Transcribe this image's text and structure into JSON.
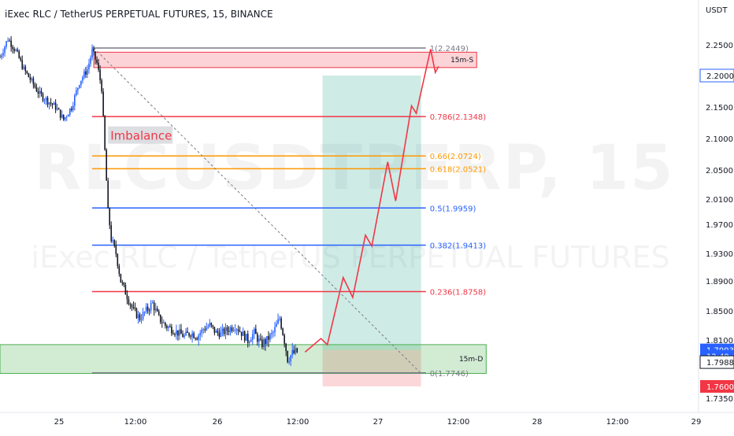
{
  "header": {
    "symbol_title": "iExec RLC / TetherUS PERPETUAL FUTURES, 15, BINANCE",
    "axis_unit": "USDT"
  },
  "watermark": {
    "ticker": "RLCUSDTPERP, 15",
    "description": "iExec RLC / TetherUS PERPETUAL FUTURES"
  },
  "colors": {
    "up_candle": "#2962ff",
    "down_candle": "#131722",
    "fib_top": "#787b86",
    "fib_0786": "#f23645",
    "fib_066": "#ff9800",
    "fib_05": "#2962ff",
    "target_zone": "#089981",
    "stop_zone": "#f23645",
    "supply_zone": "#f23645",
    "demand_zone": "#4caf50",
    "path": "#f23645",
    "current_price_tag": "#2962ff",
    "stop_price_tag": "#f23645"
  },
  "chart_data": {
    "type": "candlestick",
    "symbol": "RLCUSDTPERP",
    "interval": "15",
    "exchange": "BINANCE",
    "x_ticks": [
      "25",
      "12:00",
      "26",
      "12:00",
      "27",
      "12:00",
      "28",
      "12:00",
      "29"
    ],
    "y_ticks": [
      2.25,
      2.15,
      2.1,
      2.05,
      2.01,
      1.97,
      1.93,
      1.89,
      1.85,
      1.81,
      1.735
    ],
    "y_tick_labels": [
      "2.2500",
      "2.1500",
      "2.1000",
      "2.0500",
      "2.0100",
      "1.9700",
      "1.9300",
      "1.8900",
      "1.8500",
      "1.8100",
      "1.7350"
    ],
    "ylim": [
      1.725,
      2.29
    ],
    "price_tags": [
      {
        "label": "2.2000",
        "price": 2.2,
        "style": "blue-outline"
      },
      {
        "label": "1.7993",
        "price": 1.7993,
        "style": "blue"
      },
      {
        "label": "12:49",
        "price": 1.7925,
        "style": "blue"
      },
      {
        "label": "1.7988",
        "price": 1.7862,
        "style": "outline"
      },
      {
        "label": "1.7600",
        "price": 1.76,
        "style": "red"
      }
    ],
    "candle_close_path": [
      [
        0.0,
        2.23
      ],
      [
        2.5,
        2.26
      ],
      [
        5.0,
        2.24
      ],
      [
        7.5,
        2.21
      ],
      [
        10.0,
        2.19
      ],
      [
        12.5,
        2.17
      ],
      [
        15.0,
        2.16
      ],
      [
        17.5,
        2.15
      ],
      [
        20.0,
        2.13
      ],
      [
        22.5,
        2.15
      ],
      [
        25.0,
        2.19
      ],
      [
        27.5,
        2.21
      ],
      [
        29.0,
        2.24
      ],
      [
        30.5,
        2.22
      ],
      [
        32.0,
        2.18
      ],
      [
        33.0,
        2.08
      ],
      [
        34.0,
        1.99
      ],
      [
        35.0,
        1.95
      ],
      [
        36.5,
        1.93
      ],
      [
        38.0,
        1.89
      ],
      [
        40.0,
        1.87
      ],
      [
        42.0,
        1.85
      ],
      [
        44.0,
        1.84
      ],
      [
        46.0,
        1.85
      ],
      [
        48.0,
        1.86
      ],
      [
        50.0,
        1.84
      ],
      [
        52.0,
        1.83
      ],
      [
        54.0,
        1.825
      ],
      [
        56.0,
        1.82
      ],
      [
        58.0,
        1.815
      ],
      [
        60.0,
        1.82
      ],
      [
        62.0,
        1.815
      ],
      [
        64.0,
        1.825
      ],
      [
        66.0,
        1.83
      ],
      [
        68.0,
        1.82
      ],
      [
        70.0,
        1.82
      ],
      [
        72.0,
        1.825
      ],
      [
        74.0,
        1.83
      ],
      [
        76.0,
        1.82
      ],
      [
        78.0,
        1.81
      ],
      [
        80.0,
        1.82
      ],
      [
        82.0,
        1.805
      ],
      [
        84.0,
        1.81
      ],
      [
        86.0,
        1.82
      ],
      [
        88.0,
        1.84
      ],
      [
        89.5,
        1.81
      ],
      [
        90.5,
        1.79
      ],
      [
        92.0,
        1.795
      ],
      [
        93.5,
        1.797
      ]
    ],
    "fibonacci": {
      "start_x": 29.0,
      "end_x": 134.0,
      "levels": [
        {
          "label": "1(2.2449)",
          "price": 2.2449,
          "color_key": "fib_top"
        },
        {
          "label": "0.786(2.1348)",
          "price": 2.1348,
          "color_key": "fib_0786"
        },
        {
          "label": "0.66(2.0724)",
          "price": 2.0724,
          "color_key": "fib_066"
        },
        {
          "label": "0.618(2.0521)",
          "price": 2.0521,
          "color_key": "fib_066"
        },
        {
          "label": "0.5(1.9959)",
          "price": 1.9959,
          "color_key": "fib_05"
        },
        {
          "label": "0.382(1.9413)",
          "price": 1.9413,
          "color_key": "fib_05"
        },
        {
          "label": "0.236(1.8758)",
          "price": 1.8758,
          "color_key": "fib_0786"
        },
        {
          "label": "0(1.7746)",
          "price": 1.7746,
          "color_key": "fib_top"
        }
      ]
    },
    "zones": [
      {
        "label": "15m-S",
        "x0": 29.5,
        "x1": 150.0,
        "top": 2.238,
        "bottom": 2.213,
        "color_key": "supply_zone"
      },
      {
        "label": "15m-D",
        "x0": 0.0,
        "x1": 153.0,
        "top": 1.805,
        "bottom": 1.774,
        "color_key": "demand_zone"
      }
    ],
    "position": {
      "entry": 1.7993,
      "target": 2.2,
      "stop": 1.76,
      "x0": 101.5,
      "x1": 132.5
    },
    "projection_path": [
      [
        96.0,
        1.797
      ],
      [
        101.0,
        1.812
      ],
      [
        103.0,
        1.805
      ],
      [
        108.0,
        1.895
      ],
      [
        111.0,
        1.868
      ],
      [
        115.0,
        1.955
      ],
      [
        117.0,
        1.94
      ],
      [
        122.0,
        2.063
      ],
      [
        124.5,
        2.007
      ],
      [
        129.5,
        2.152
      ],
      [
        131.0,
        2.14
      ],
      [
        135.5,
        2.243
      ],
      [
        137.0,
        2.205
      ],
      [
        138.0,
        2.215
      ]
    ],
    "trend_line": {
      "from": [
        29.5,
        2.245
      ],
      "to": [
        132.5,
        1.774
      ]
    },
    "annotation": {
      "label": "Imbalance",
      "x": 34.5,
      "price": 2.103
    }
  }
}
